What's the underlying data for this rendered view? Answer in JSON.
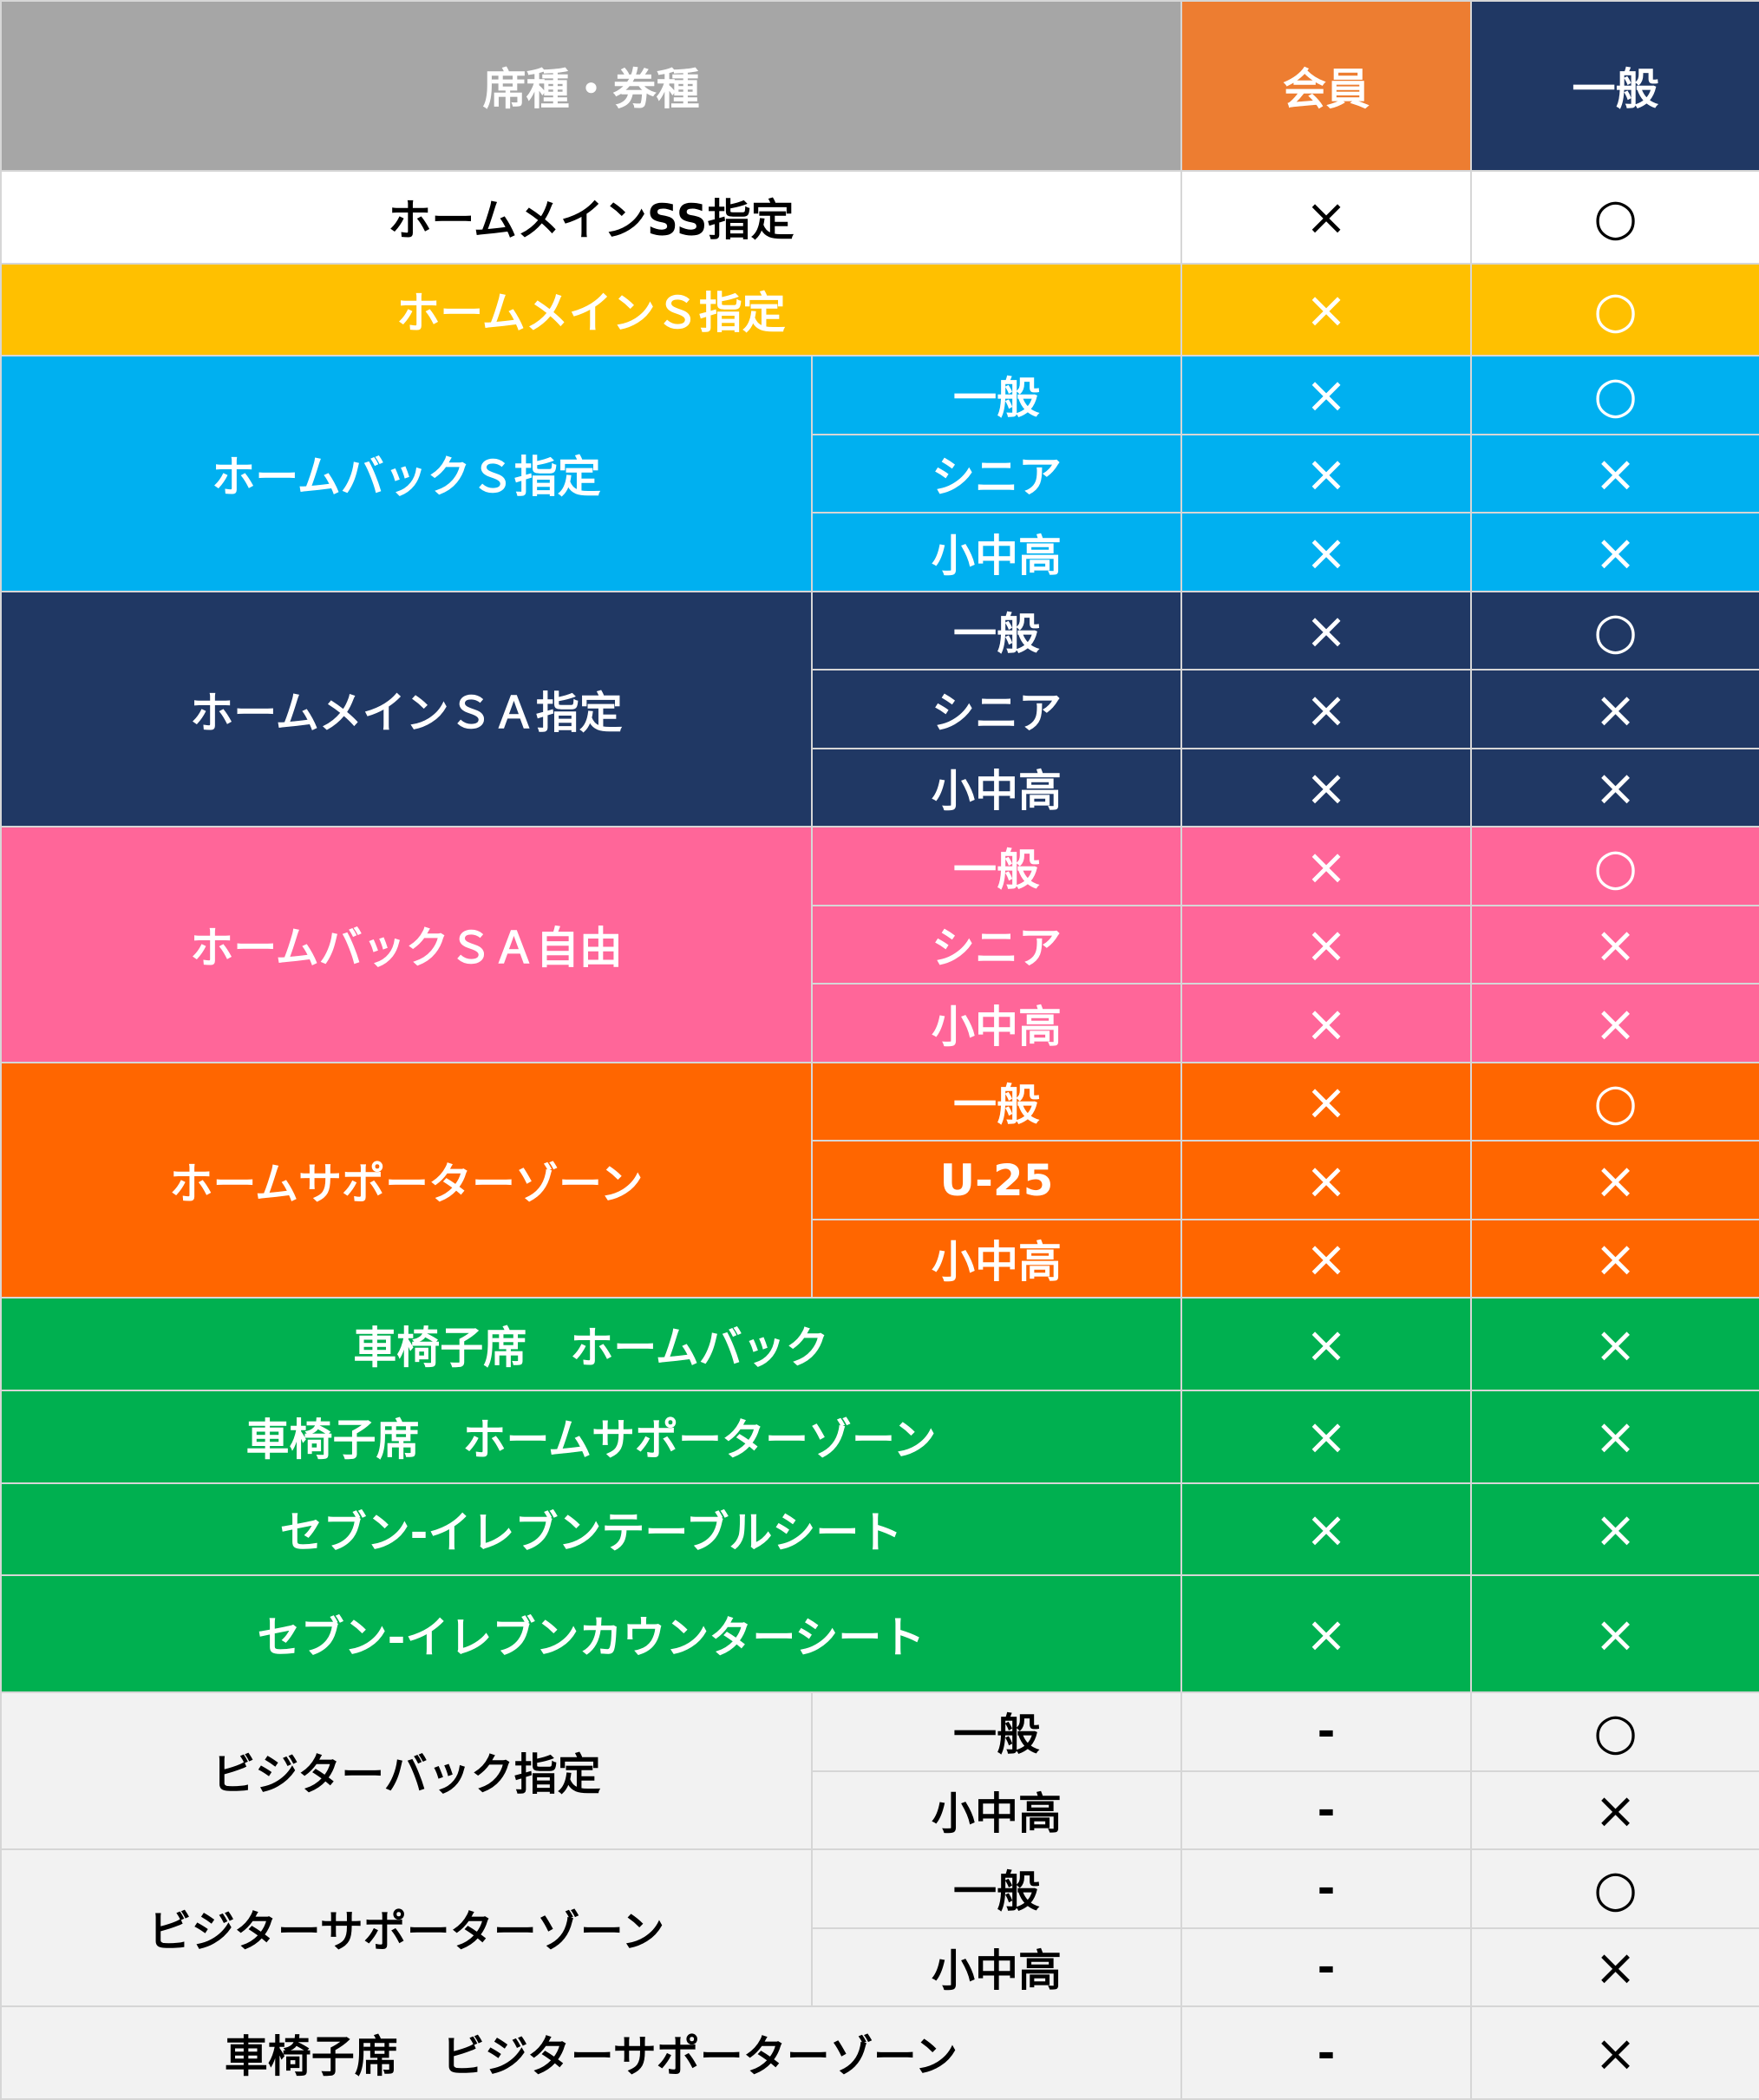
{
  "header": {
    "seat_label": "席種・券種",
    "member_label": "会員",
    "general_label": "一般",
    "colors": {
      "seat": "#a6a6a6",
      "member": "#ed7d31",
      "general": "#203864"
    }
  },
  "groups": [
    {
      "name": "ホームメインSS指定",
      "bg": "#ffffff",
      "fg": "#000000",
      "rows": [
        {
          "sub": null,
          "member": "×",
          "general": "○"
        }
      ]
    },
    {
      "name": "ホームメインＳ指定",
      "bg": "#ffc000",
      "fg": "#ffffff",
      "rows": [
        {
          "sub": null,
          "member": "×",
          "general": "○"
        }
      ]
    },
    {
      "name": "ホームバックＳ指定",
      "bg": "#00b0f0",
      "fg": "#ffffff",
      "rows": [
        {
          "sub": "一般",
          "member": "×",
          "general": "○"
        },
        {
          "sub": "シニア",
          "member": "×",
          "general": "×"
        },
        {
          "sub": "小中高",
          "member": "×",
          "general": "×"
        }
      ]
    },
    {
      "name": "ホームメインＳＡ指定",
      "bg": "#203864",
      "fg": "#ffffff",
      "rows": [
        {
          "sub": "一般",
          "member": "×",
          "general": "○"
        },
        {
          "sub": "シニア",
          "member": "×",
          "general": "×"
        },
        {
          "sub": "小中高",
          "member": "×",
          "general": "×"
        }
      ]
    },
    {
      "name": "ホームバックＳＡ自由",
      "bg": "#ff6699",
      "fg": "#ffffff",
      "rows": [
        {
          "sub": "一般",
          "member": "×",
          "general": "○"
        },
        {
          "sub": "シニア",
          "member": "×",
          "general": "×"
        },
        {
          "sub": "小中高",
          "member": "×",
          "general": "×"
        }
      ]
    },
    {
      "name": "ホームサポーターゾーン",
      "bg": "#ff6600",
      "fg": "#ffffff",
      "rows": [
        {
          "sub": "一般",
          "member": "×",
          "general": "○"
        },
        {
          "sub": "U-25",
          "member": "×",
          "general": "×"
        },
        {
          "sub": "小中高",
          "member": "×",
          "general": "×"
        }
      ]
    },
    {
      "name": "車椅子席　ホームバック",
      "bg": "#00b050",
      "fg": "#ffffff",
      "rows": [
        {
          "sub": null,
          "member": "×",
          "general": "×"
        }
      ]
    },
    {
      "name": "車椅子席　ホームサポーターゾーン",
      "bg": "#00b050",
      "fg": "#ffffff",
      "rows": [
        {
          "sub": null,
          "member": "×",
          "general": "×"
        }
      ]
    },
    {
      "name": "セブン-イレブンテーブルシート",
      "bg": "#00b050",
      "fg": "#ffffff",
      "rows": [
        {
          "sub": null,
          "member": "×",
          "general": "×"
        }
      ]
    },
    {
      "name": "セブン-イレブンカウンターシート",
      "bg": "#00b050",
      "fg": "#ffffff",
      "rows": [
        {
          "sub": null,
          "member": "×",
          "general": "×"
        }
      ]
    },
    {
      "name": "ビジターバック指定",
      "bg": "#f2f2f2",
      "fg": "#000000",
      "rows": [
        {
          "sub": "一般",
          "member": "-",
          "general": "○"
        },
        {
          "sub": "小中高",
          "member": "-",
          "general": "×"
        }
      ]
    },
    {
      "name": "ビジターサポーターゾーン",
      "bg": "#f2f2f2",
      "fg": "#000000",
      "rows": [
        {
          "sub": "一般",
          "member": "-",
          "general": "○"
        },
        {
          "sub": "小中高",
          "member": "-",
          "general": "×"
        }
      ]
    },
    {
      "name": "車椅子席　ビジターサポーターゾーン",
      "bg": "#f2f2f2",
      "fg": "#000000",
      "rows": [
        {
          "sub": null,
          "member": "-",
          "general": "×"
        }
      ]
    }
  ]
}
